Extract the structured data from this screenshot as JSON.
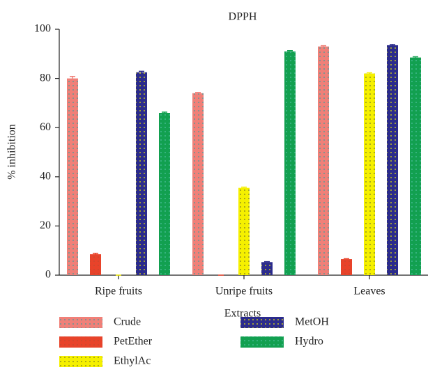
{
  "chart_data": {
    "type": "bar",
    "title": "DPPH",
    "x_label": "Extracts",
    "y_label": "% inhibition",
    "categories": [
      "Ripe fruits",
      "Unripe fruits",
      "Leaves"
    ],
    "series": [
      {
        "name": "Crude",
        "color": "#f08078",
        "values": [
          80,
          74,
          93
        ],
        "errors": [
          0.8,
          0.3,
          0.3
        ]
      },
      {
        "name": "PetEther",
        "color": "#e8432a",
        "values": [
          8.5,
          0,
          6.5
        ],
        "errors": [
          0.4,
          0,
          0.2
        ]
      },
      {
        "name": "EthylAc",
        "color": "#f5f000",
        "values": [
          0,
          35.5,
          82
        ],
        "errors": [
          0,
          0.3,
          0.3
        ]
      },
      {
        "name": "MetOH",
        "color": "#2b2b8c",
        "values": [
          82.5,
          5.3,
          93.5
        ],
        "errors": [
          0.4,
          0.2,
          0.3
        ]
      },
      {
        "name": "Hydro",
        "color": "#12a050",
        "values": [
          66,
          91,
          88.5
        ],
        "errors": [
          0.3,
          0.3,
          0.3
        ]
      }
    ],
    "ylim": [
      0,
      100
    ],
    "yticks": [
      0,
      20,
      40,
      60,
      80,
      100
    ],
    "legend": "bottom"
  }
}
